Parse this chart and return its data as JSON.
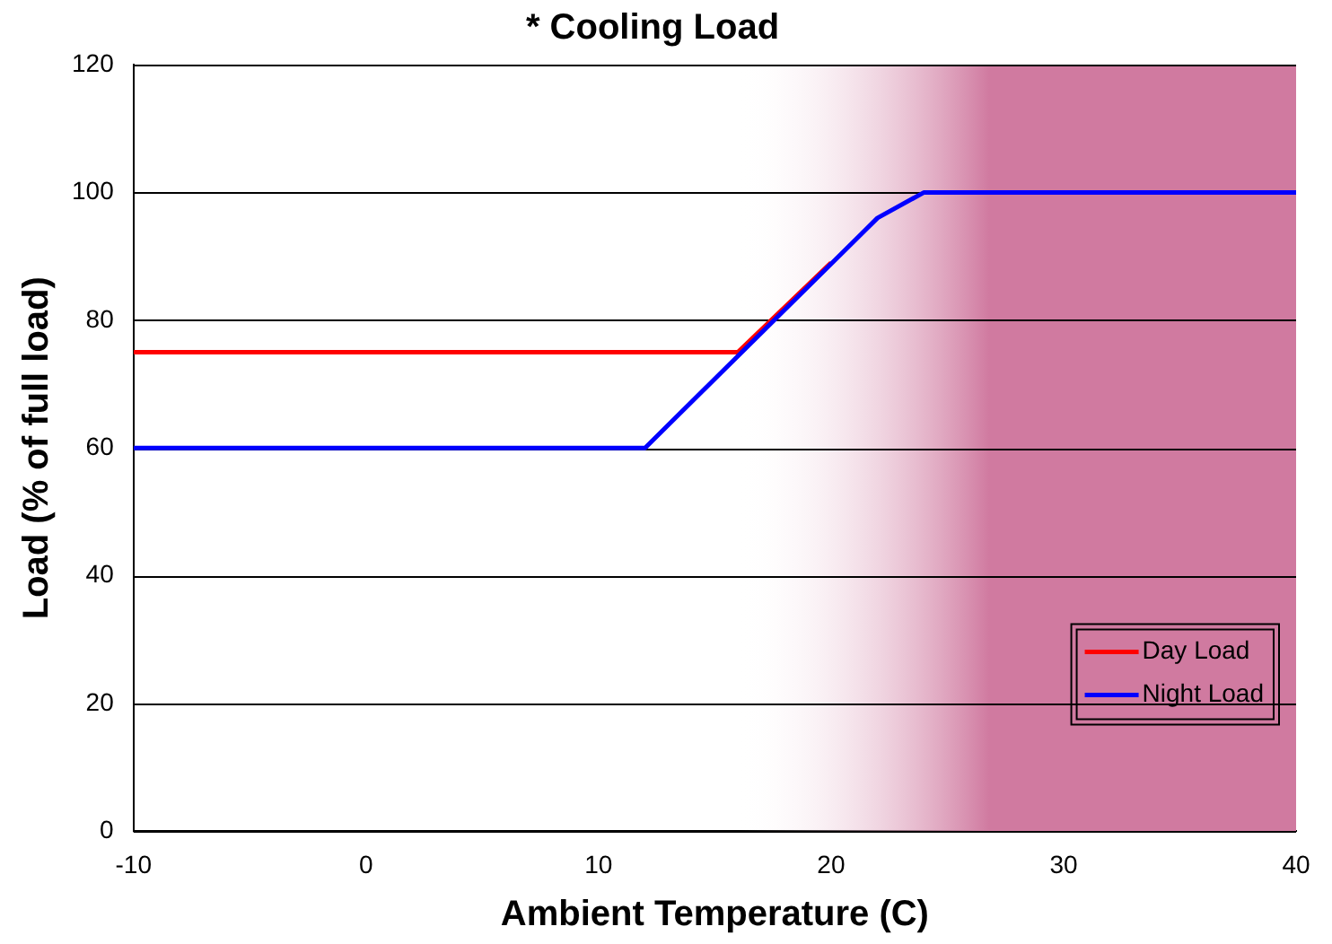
{
  "chart_data": {
    "type": "line",
    "title": "* Cooling Load",
    "xlabel": "Ambient Temperature (C)",
    "ylabel": "Load (% of full load)",
    "series": [
      {
        "name": "Day Load",
        "color": "#ff0000",
        "x": [
          -10,
          16,
          20
        ],
        "values": [
          75,
          75,
          89
        ]
      },
      {
        "name": "Night Load",
        "color": "#0000ff",
        "x": [
          -10,
          12,
          22,
          24,
          40
        ],
        "values": [
          60,
          60,
          96,
          100,
          100
        ]
      }
    ],
    "xlim": [
      -10,
      40
    ],
    "xticks": [
      -10,
      0,
      10,
      20,
      30,
      40
    ],
    "ylim": [
      0,
      120
    ],
    "yticks": [
      0,
      20,
      40,
      60,
      80,
      100,
      120
    ],
    "grid": "y",
    "legend": "bottom right",
    "marker": "none",
    "line_style": "solid",
    "bands": [
      {
        "axis": "x",
        "from": 16,
        "to": 40,
        "color": "#d07aa0"
      }
    ]
  }
}
